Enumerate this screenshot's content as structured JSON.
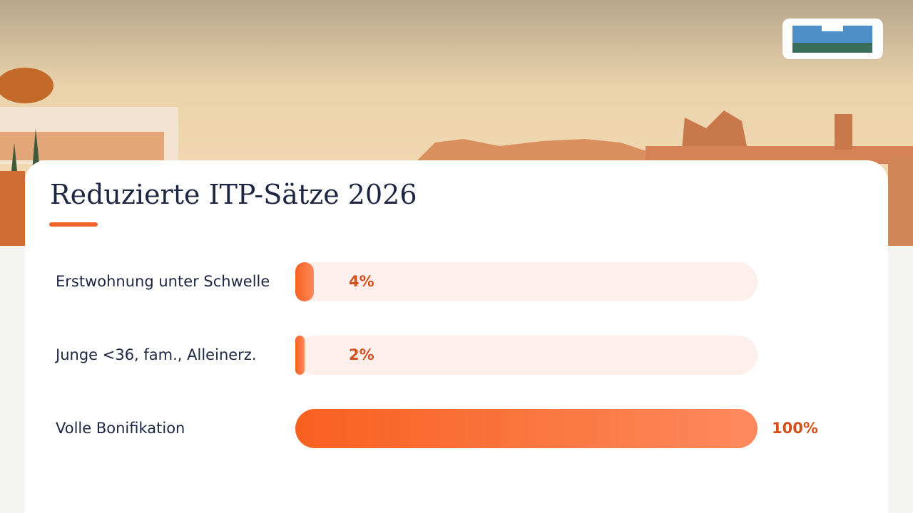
{
  "chart_data": {
    "type": "bar",
    "orientation": "horizontal",
    "title": "Reduzierte ITP-Sätze 2026",
    "categories": [
      "Erstwohnung unter Schwelle",
      "Junge <36, fam., Alleinerz.",
      "Volle Bonifikation"
    ],
    "values": [
      4,
      2,
      100
    ],
    "value_labels": [
      "4%",
      "2%",
      "100%"
    ],
    "color": "#f8601f",
    "track_color": "#fdf0ec",
    "label_color": "#d4501c"
  }
}
